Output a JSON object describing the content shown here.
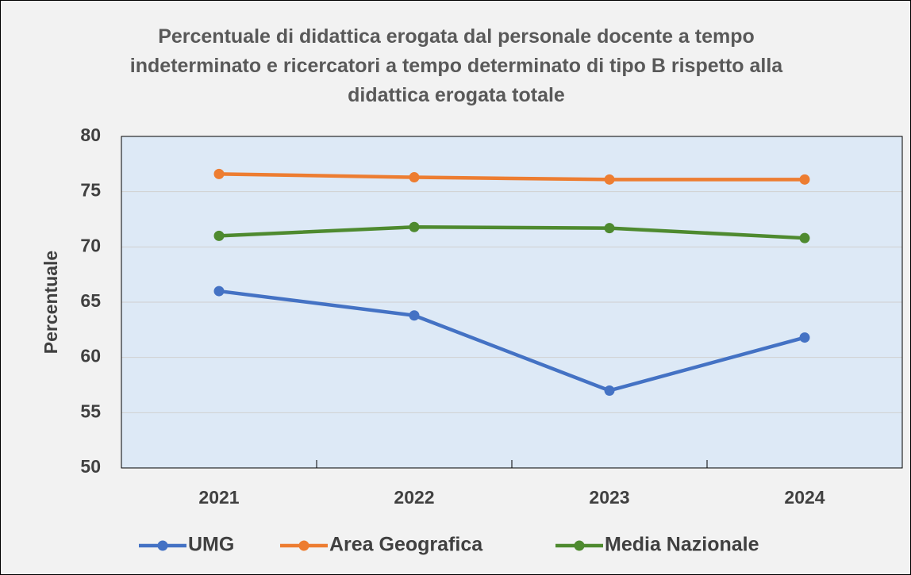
{
  "chart_data": {
    "type": "line",
    "title": "Percentuale di didattica erogata dal personale docente a tempo indeterminato e ricercatori a tempo determinato di tipo B rispetto alla didattica erogata totale",
    "y_label": "Percentuale",
    "categories": [
      "2021",
      "2022",
      "2023",
      "2024"
    ],
    "series": [
      {
        "name": "UMG",
        "color": "#4472c4",
        "values": [
          66.0,
          63.8,
          57.0,
          61.8
        ]
      },
      {
        "name": "Area Geografica",
        "color": "#ed7d31",
        "values": [
          76.6,
          76.3,
          76.1,
          76.1
        ]
      },
      {
        "name": "Media Nazionale",
        "color": "#4e8a2f",
        "values": [
          71.0,
          71.8,
          71.7,
          70.8
        ]
      }
    ],
    "ylim": [
      50,
      80
    ],
    "yticks": [
      50,
      55,
      60,
      65,
      70,
      75,
      80
    ],
    "grid": true,
    "legend": "bottom"
  }
}
